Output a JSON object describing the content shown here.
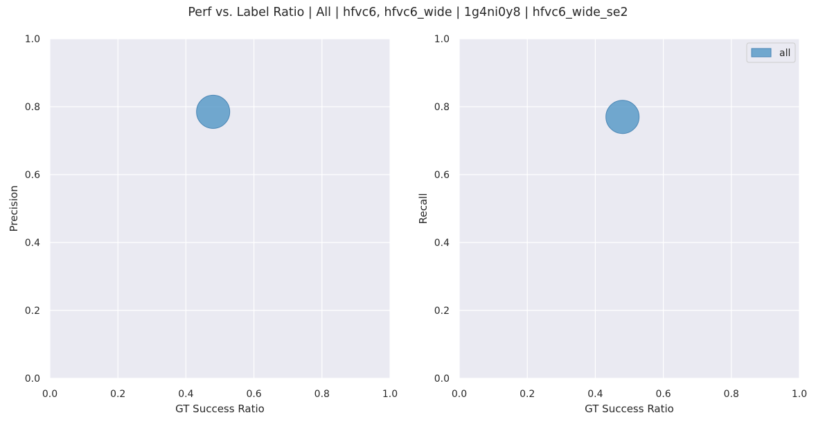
{
  "figure": {
    "title": "Perf vs. Label Ratio | All | hfvc6, hfvc6_wide | 1g4ni0y8 | hfvc6_wide_se2"
  },
  "style": {
    "plot_bg": "#eaeaf2",
    "grid_color": "#ffffff",
    "marker_color": "#5b9bc8",
    "marker_edge": "#4a86b5",
    "legend_bg": "#eaeaf2",
    "legend_border": "#cccccc"
  },
  "chart_data": [
    {
      "type": "scatter",
      "xlabel": "GT Success Ratio",
      "ylabel": "Precision",
      "xlim": [
        0,
        1
      ],
      "ylim": [
        0,
        1
      ],
      "xticks": [
        "0.0",
        "0.2",
        "0.4",
        "0.6",
        "0.8",
        "1.0"
      ],
      "yticks": [
        "0.0",
        "0.2",
        "0.4",
        "0.6",
        "0.8",
        "1.0"
      ],
      "grid": true,
      "series": [
        {
          "name": "all",
          "points": [
            {
              "x": 0.48,
              "y": 0.785
            }
          ]
        }
      ]
    },
    {
      "type": "scatter",
      "xlabel": "GT Success Ratio",
      "ylabel": "Recall",
      "xlim": [
        0,
        1
      ],
      "ylim": [
        0,
        1
      ],
      "xticks": [
        "0.0",
        "0.2",
        "0.4",
        "0.6",
        "0.8",
        "1.0"
      ],
      "yticks": [
        "0.0",
        "0.2",
        "0.4",
        "0.6",
        "0.8",
        "1.0"
      ],
      "grid": true,
      "legend": {
        "position": "top-right",
        "entries": [
          "all"
        ]
      },
      "series": [
        {
          "name": "all",
          "points": [
            {
              "x": 0.48,
              "y": 0.77
            }
          ]
        }
      ]
    }
  ]
}
